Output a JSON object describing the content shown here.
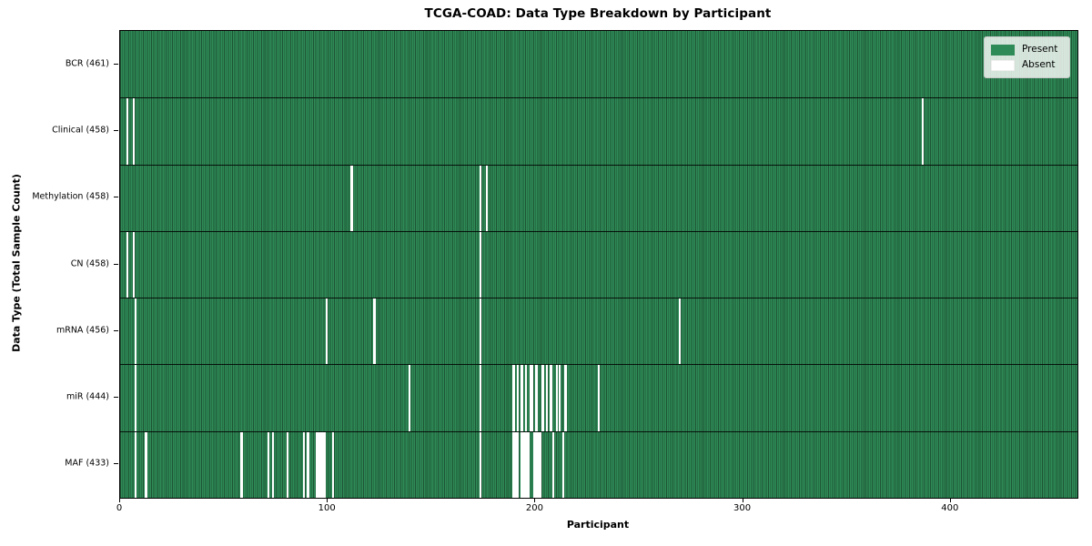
{
  "chart_data": {
    "type": "heatmap",
    "title": "TCGA-COAD: Data Type Breakdown by Participant",
    "xlabel": "Participant",
    "ylabel": "Data Type (Total Sample Count)",
    "n_participants": 461,
    "xlim": [
      0,
      461
    ],
    "x_ticks": [
      0,
      100,
      200,
      300,
      400
    ],
    "grid": false,
    "legend": {
      "position": "upper right",
      "entries": [
        {
          "label": "Present",
          "color": "#2e8b57"
        },
        {
          "label": "Absent",
          "color": "#ffffff"
        }
      ]
    },
    "colors": {
      "present": "#2e8b57",
      "present_edge": "#1f5434",
      "absent": "#ffffff",
      "row_separator": "#111111"
    },
    "rows": [
      {
        "name": "BCR",
        "label": "BCR (461)",
        "present_count": 461,
        "absent_participants": []
      },
      {
        "name": "Clinical",
        "label": "Clinical (458)",
        "present_count": 458,
        "absent_participants": [
          3,
          6,
          386
        ]
      },
      {
        "name": "Methylation",
        "label": "Methylation (458)",
        "present_count": 458,
        "absent_participants": [
          111,
          173,
          176
        ]
      },
      {
        "name": "CN",
        "label": "CN (458)",
        "present_count": 458,
        "absent_participants": [
          3,
          6,
          173
        ]
      },
      {
        "name": "mRNA",
        "label": "mRNA (456)",
        "present_count": 456,
        "absent_participants": [
          7,
          99,
          122,
          173,
          269
        ]
      },
      {
        "name": "miR",
        "label": "miR (444)",
        "present_count": 444,
        "absent_participants": [
          7,
          139,
          173,
          189,
          191,
          193,
          195,
          197,
          198,
          200,
          203,
          205,
          207,
          210,
          211,
          214,
          230
        ]
      },
      {
        "name": "MAF",
        "label": "MAF (433)",
        "present_count": 433,
        "absent_participants": [
          7,
          12,
          58,
          71,
          73,
          80,
          88,
          90,
          94,
          95,
          96,
          97,
          98,
          102,
          173,
          189,
          190,
          191,
          193,
          194,
          195,
          196,
          199,
          200,
          201,
          202,
          208,
          213
        ]
      }
    ]
  }
}
